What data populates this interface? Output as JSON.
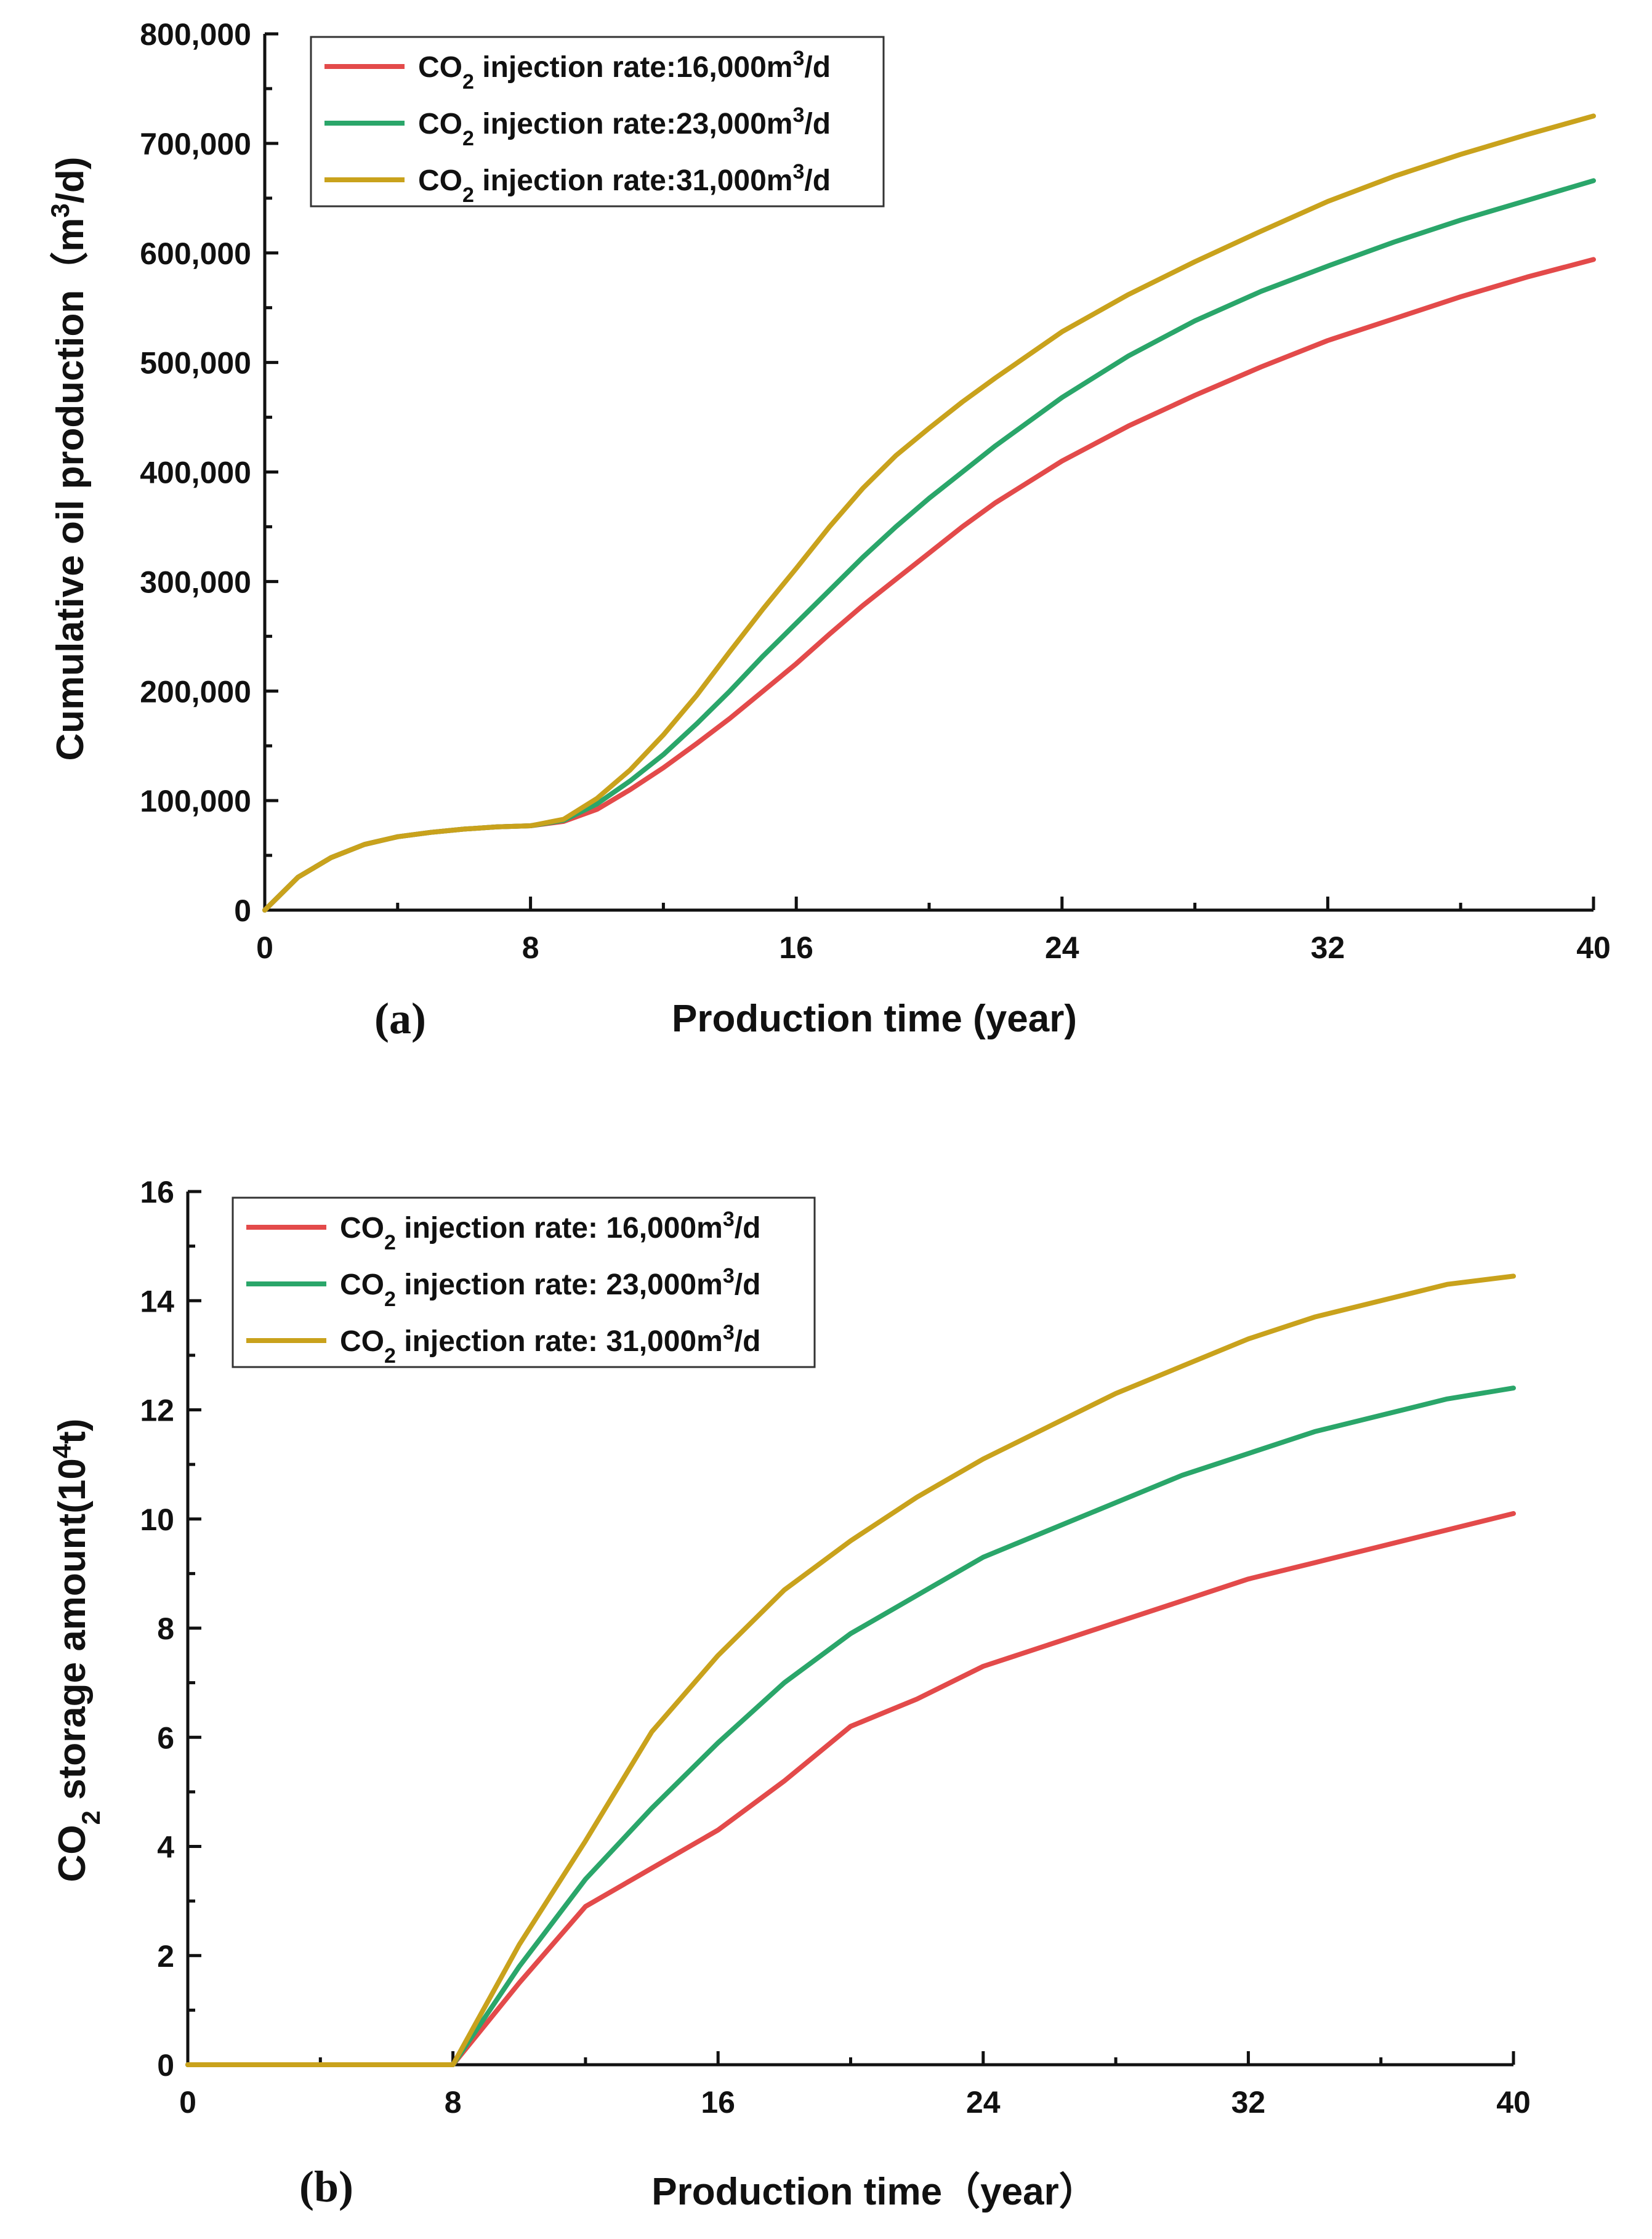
{
  "chart_data": [
    {
      "type": "line",
      "panel_label": "(a)",
      "xlabel": "Production time (year)",
      "ylabel": "Cumulative oil production",
      "ylabel_unit_base": "（m",
      "ylabel_unit_sup": "3",
      "ylabel_unit_tail": "/d)",
      "xlim": [
        0,
        40
      ],
      "ylim": [
        0,
        800000
      ],
      "x_ticks": [
        0,
        8,
        16,
        24,
        32,
        40
      ],
      "x_tick_labels": [
        "0",
        "8",
        "16",
        "24",
        "32",
        "40"
      ],
      "y_ticks": [
        0,
        100000,
        200000,
        300000,
        400000,
        500000,
        600000,
        700000,
        800000
      ],
      "y_tick_labels": [
        "0",
        "100,000",
        "200,000",
        "300,000",
        "400,000",
        "500,000",
        "600,000",
        "700,000",
        "800,000"
      ],
      "grid": false,
      "legend_position": "top-left",
      "series": [
        {
          "name": "CO2 injection rate:16,000m3/d",
          "legend_parts": [
            "CO",
            "2",
            " injection rate:16,000m",
            "3",
            "/d"
          ],
          "color": "#e34a4a",
          "x": [
            0,
            1,
            2,
            3,
            4,
            5,
            6,
            7,
            8,
            9,
            10,
            11,
            12,
            13,
            14,
            15,
            16,
            17,
            18,
            19,
            20,
            21,
            22,
            24,
            26,
            28,
            30,
            32,
            34,
            36,
            38,
            40
          ],
          "y": [
            0,
            30000,
            48000,
            60000,
            67000,
            71000,
            74000,
            76000,
            77000,
            81000,
            92000,
            110000,
            130000,
            152000,
            175000,
            200000,
            225000,
            252000,
            278000,
            302000,
            326000,
            350000,
            372000,
            410000,
            442000,
            470000,
            496000,
            520000,
            540000,
            560000,
            578000,
            594000
          ]
        },
        {
          "name": "CO2 injection rate:23,000m3/d",
          "legend_parts": [
            "CO",
            "2",
            " injection rate:23,000m",
            "3",
            "/d"
          ],
          "color": "#2aa66a",
          "x": [
            0,
            1,
            2,
            3,
            4,
            5,
            6,
            7,
            8,
            9,
            10,
            11,
            12,
            13,
            14,
            15,
            16,
            17,
            18,
            19,
            20,
            21,
            22,
            24,
            26,
            28,
            30,
            32,
            34,
            36,
            38,
            40
          ],
          "y": [
            0,
            30000,
            48000,
            60000,
            67000,
            71000,
            74000,
            76000,
            77000,
            82000,
            97000,
            118000,
            142000,
            170000,
            200000,
            232000,
            262000,
            292000,
            322000,
            350000,
            376000,
            400000,
            424000,
            468000,
            506000,
            538000,
            565000,
            588000,
            610000,
            630000,
            648000,
            666000
          ]
        },
        {
          "name": "CO2 injection rate:31,000m3/d",
          "legend_parts": [
            "CO",
            "2",
            " injection rate:31,000m",
            "3",
            "/d"
          ],
          "color": "#c9a21c",
          "x": [
            0,
            1,
            2,
            3,
            4,
            5,
            6,
            7,
            8,
            9,
            10,
            11,
            12,
            13,
            14,
            15,
            16,
            17,
            18,
            19,
            20,
            21,
            22,
            24,
            26,
            28,
            30,
            32,
            34,
            36,
            38,
            40
          ],
          "y": [
            0,
            30000,
            48000,
            60000,
            67000,
            71000,
            74000,
            76000,
            77000,
            83000,
            102000,
            128000,
            160000,
            196000,
            236000,
            275000,
            312000,
            350000,
            385000,
            415000,
            440000,
            464000,
            486000,
            528000,
            562000,
            592000,
            620000,
            647000,
            670000,
            690000,
            708000,
            725000
          ]
        }
      ]
    },
    {
      "type": "line",
      "panel_label": "(b)",
      "xlabel": "Production time（year）",
      "ylabel_parts": [
        "CO",
        "2",
        " storage amount(10",
        "4",
        "t)"
      ],
      "xlim": [
        0,
        40
      ],
      "ylim": [
        0,
        16
      ],
      "x_ticks": [
        0,
        8,
        16,
        24,
        32,
        40
      ],
      "x_tick_labels": [
        "0",
        "8",
        "16",
        "24",
        "32",
        "40"
      ],
      "y_ticks": [
        0,
        2,
        4,
        6,
        8,
        10,
        12,
        14,
        16
      ],
      "y_tick_labels": [
        "0",
        "2",
        "4",
        "6",
        "8",
        "10",
        "12",
        "14",
        "16"
      ],
      "grid": false,
      "legend_position": "top-left",
      "series": [
        {
          "name": "CO2 injection rate: 16,000m3/d",
          "legend_parts": [
            "CO",
            "2",
            " injection rate: 16,000m",
            "3",
            "/d"
          ],
          "color": "#e34a4a",
          "x": [
            0,
            8,
            10,
            12,
            14,
            16,
            18,
            20,
            22,
            24,
            26,
            28,
            30,
            32,
            34,
            36,
            38,
            40
          ],
          "y": [
            0,
            0,
            1.5,
            2.9,
            3.6,
            4.3,
            5.2,
            6.2,
            6.7,
            7.3,
            7.7,
            8.1,
            8.5,
            8.9,
            9.2,
            9.5,
            9.8,
            10.1
          ]
        },
        {
          "name": "CO2 injection rate: 23,000m3/d",
          "legend_parts": [
            "CO",
            "2",
            " injection rate: 23,000m",
            "3",
            "/d"
          ],
          "color": "#2aa66a",
          "x": [
            0,
            8,
            10,
            12,
            14,
            16,
            18,
            20,
            22,
            24,
            26,
            28,
            30,
            32,
            34,
            36,
            38,
            40
          ],
          "y": [
            0,
            0,
            1.8,
            3.4,
            4.7,
            5.9,
            7.0,
            7.9,
            8.6,
            9.3,
            9.8,
            10.3,
            10.8,
            11.2,
            11.6,
            11.9,
            12.2,
            12.4
          ]
        },
        {
          "name": "CO2 injection rate: 31,000m3/d",
          "legend_parts": [
            "CO",
            "2",
            " injection rate: 31,000m",
            "3",
            "/d"
          ],
          "color": "#c9a21c",
          "x": [
            0,
            8,
            10,
            12,
            14,
            16,
            18,
            20,
            22,
            24,
            26,
            28,
            30,
            32,
            34,
            36,
            38,
            40
          ],
          "y": [
            0,
            0,
            2.2,
            4.1,
            6.1,
            7.5,
            8.7,
            9.6,
            10.4,
            11.1,
            11.7,
            12.3,
            12.8,
            13.3,
            13.7,
            14.0,
            14.3,
            14.45
          ]
        }
      ]
    }
  ]
}
